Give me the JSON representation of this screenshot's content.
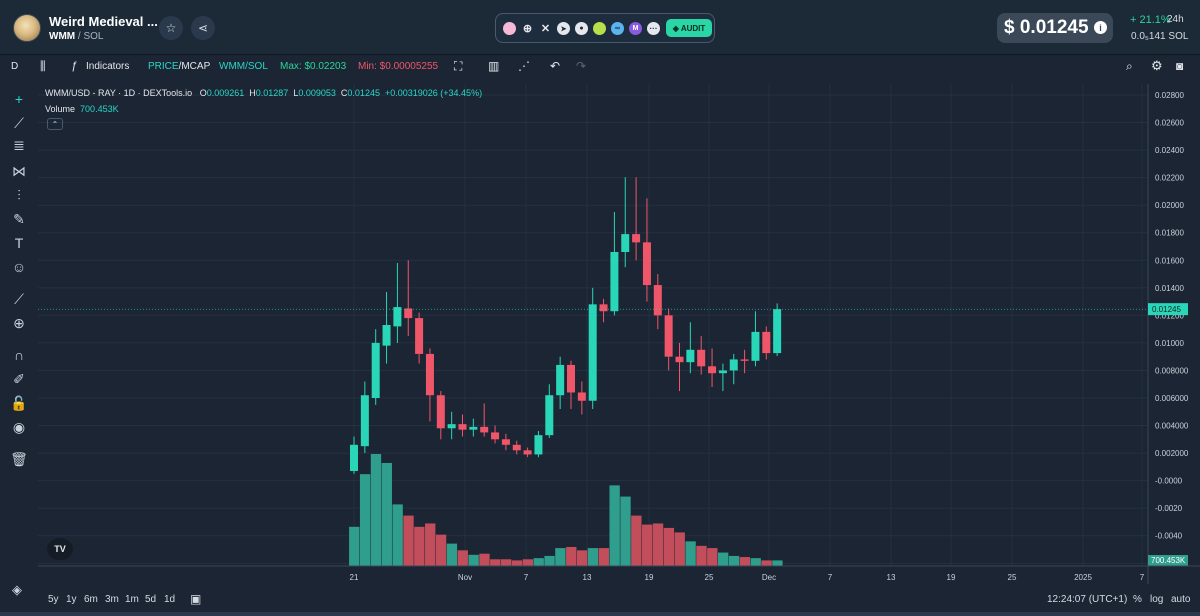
{
  "header": {
    "token_name": "Weird Medieval ...",
    "token_symbol": "WMM",
    "pair_sep": " / ",
    "pair_quote": "SOL",
    "star_icon": "star-icon",
    "share_icon": "share-icon",
    "social_icons": [
      "pink-dot-icon",
      "globe-icon",
      "x-icon",
      "telegram-icon",
      "reddit-icon",
      "green-dot-icon",
      "bubble-icon",
      "m-icon",
      "dots-icon"
    ],
    "audit_label": "AUDIT",
    "price": "$ 0.01245",
    "change": "+ 21.1%",
    "change_period": "24h",
    "sol_price": "0.0₅141  SOL"
  },
  "toolbar": {
    "interval": "D",
    "indicators": "Indicators",
    "price_mcap_a": "PRICE",
    "price_mcap_b": "/MCAP",
    "pair": "WMM/SOL",
    "max": "Max: $0.02203",
    "min": "Min: $0.00005255"
  },
  "legend": {
    "title": "WMM/USD - RAY · 1D · DEXTools.io",
    "o_label": "O",
    "o": "0.009261",
    "h_label": "H",
    "h": "0.01287",
    "l_label": "L",
    "l": "0.009053",
    "c_label": "C",
    "c": "0.01245",
    "change": "+0.00319026 (+34.45%)",
    "volume_label": "Volume",
    "volume": "700.453K"
  },
  "chart_data": {
    "type": "candlestick",
    "x_labels": [
      "21",
      "Nov",
      "7",
      "13",
      "19",
      "25",
      "Dec",
      "7",
      "13",
      "19",
      "25",
      "2025",
      "7"
    ],
    "y_ticks": [
      "0.02800",
      "0.02600",
      "0.02400",
      "0.02200",
      "0.02000",
      "0.01800",
      "0.01600",
      "0.01400",
      "0.01200",
      "0.01000",
      "0.008000",
      "0.006000",
      "0.004000",
      "0.002000",
      "-0.0000",
      "-0.0020",
      "-0.0040",
      "-0.0060"
    ],
    "current_price_label": "0.01245",
    "volume_label": "700.453K",
    "ylim": [
      -0.0062,
      0.0288
    ],
    "candles": [
      {
        "o": 0.0007,
        "c": 0.0026,
        "h": 0.0032,
        "l": 0.0005
      },
      {
        "o": 0.0025,
        "c": 0.0062,
        "h": 0.0072,
        "l": 0.002
      },
      {
        "o": 0.006,
        "c": 0.01,
        "h": 0.011,
        "l": 0.0055
      },
      {
        "o": 0.0098,
        "c": 0.0113,
        "h": 0.0137,
        "l": 0.0085
      },
      {
        "o": 0.0112,
        "c": 0.0126,
        "h": 0.0158,
        "l": 0.01
      },
      {
        "o": 0.0125,
        "c": 0.0118,
        "h": 0.016,
        "l": 0.0105
      },
      {
        "o": 0.0118,
        "c": 0.0092,
        "h": 0.0122,
        "l": 0.0085
      },
      {
        "o": 0.0092,
        "c": 0.0062,
        "h": 0.0096,
        "l": 0.0043
      },
      {
        "o": 0.0062,
        "c": 0.0038,
        "h": 0.0065,
        "l": 0.003
      },
      {
        "o": 0.0038,
        "c": 0.0041,
        "h": 0.005,
        "l": 0.003
      },
      {
        "o": 0.0041,
        "c": 0.0037,
        "h": 0.0048,
        "l": 0.0032
      },
      {
        "o": 0.0037,
        "c": 0.0039,
        "h": 0.0045,
        "l": 0.0032
      },
      {
        "o": 0.0039,
        "c": 0.0035,
        "h": 0.0056,
        "l": 0.0032
      },
      {
        "o": 0.0035,
        "c": 0.003,
        "h": 0.004,
        "l": 0.0027
      },
      {
        "o": 0.003,
        "c": 0.0026,
        "h": 0.0034,
        "l": 0.0022
      },
      {
        "o": 0.0026,
        "c": 0.0022,
        "h": 0.0029,
        "l": 0.0019
      },
      {
        "o": 0.0022,
        "c": 0.0019,
        "h": 0.0024,
        "l": 0.0017
      },
      {
        "o": 0.0019,
        "c": 0.0033,
        "h": 0.0036,
        "l": 0.0017
      },
      {
        "o": 0.0033,
        "c": 0.0062,
        "h": 0.007,
        "l": 0.0031
      },
      {
        "o": 0.0062,
        "c": 0.0084,
        "h": 0.009,
        "l": 0.0052
      },
      {
        "o": 0.0084,
        "c": 0.0064,
        "h": 0.0087,
        "l": 0.0052
      },
      {
        "o": 0.0064,
        "c": 0.0058,
        "h": 0.0072,
        "l": 0.0048
      },
      {
        "o": 0.0058,
        "c": 0.0128,
        "h": 0.014,
        "l": 0.0052
      },
      {
        "o": 0.0128,
        "c": 0.0123,
        "h": 0.0132,
        "l": 0.0115
      },
      {
        "o": 0.0123,
        "c": 0.0166,
        "h": 0.0195,
        "l": 0.012
      },
      {
        "o": 0.0166,
        "c": 0.0179,
        "h": 0.02203,
        "l": 0.0155
      },
      {
        "o": 0.0179,
        "c": 0.0173,
        "h": 0.02203,
        "l": 0.016
      },
      {
        "o": 0.0173,
        "c": 0.0142,
        "h": 0.0205,
        "l": 0.013
      },
      {
        "o": 0.0142,
        "c": 0.012,
        "h": 0.015,
        "l": 0.011
      },
      {
        "o": 0.012,
        "c": 0.009,
        "h": 0.0125,
        "l": 0.008
      },
      {
        "o": 0.009,
        "c": 0.0086,
        "h": 0.01,
        "l": 0.0065
      },
      {
        "o": 0.0086,
        "c": 0.0095,
        "h": 0.0115,
        "l": 0.0078
      },
      {
        "o": 0.0095,
        "c": 0.0083,
        "h": 0.0105,
        "l": 0.0077
      },
      {
        "o": 0.0083,
        "c": 0.0078,
        "h": 0.0096,
        "l": 0.0068
      },
      {
        "o": 0.0078,
        "c": 0.008,
        "h": 0.0085,
        "l": 0.0065
      },
      {
        "o": 0.008,
        "c": 0.0088,
        "h": 0.0092,
        "l": 0.007
      },
      {
        "o": 0.0088,
        "c": 0.0087,
        "h": 0.0095,
        "l": 0.0078
      },
      {
        "o": 0.0087,
        "c": 0.0108,
        "h": 0.0123,
        "l": 0.0083
      },
      {
        "o": 0.0108,
        "c": 0.00926,
        "h": 0.0112,
        "l": 0.0088
      },
      {
        "o": 0.00926,
        "c": 0.01245,
        "h": 0.01287,
        "l": 0.00905
      }
    ],
    "volume": [
      0.35,
      0.82,
      1.0,
      0.92,
      0.55,
      0.45,
      0.35,
      0.38,
      0.28,
      0.2,
      0.14,
      0.1,
      0.11,
      0.06,
      0.06,
      0.05,
      0.06,
      0.07,
      0.09,
      0.16,
      0.17,
      0.14,
      0.16,
      0.16,
      0.72,
      0.62,
      0.45,
      0.37,
      0.38,
      0.34,
      0.3,
      0.22,
      0.18,
      0.16,
      0.12,
      0.09,
      0.08,
      0.07,
      0.05,
      0.05
    ],
    "colors": {
      "up": "#2ad6b8",
      "down": "#f0566a",
      "vol_up": "#2f9e8c",
      "vol_down": "#c24d5b"
    }
  },
  "bottom": {
    "ranges": [
      "5y",
      "1y",
      "6m",
      "3m",
      "1m",
      "5d",
      "1d"
    ],
    "time": "12:24:07 (UTC+1)",
    "percent": "%",
    "log": "log",
    "auto": "auto"
  }
}
